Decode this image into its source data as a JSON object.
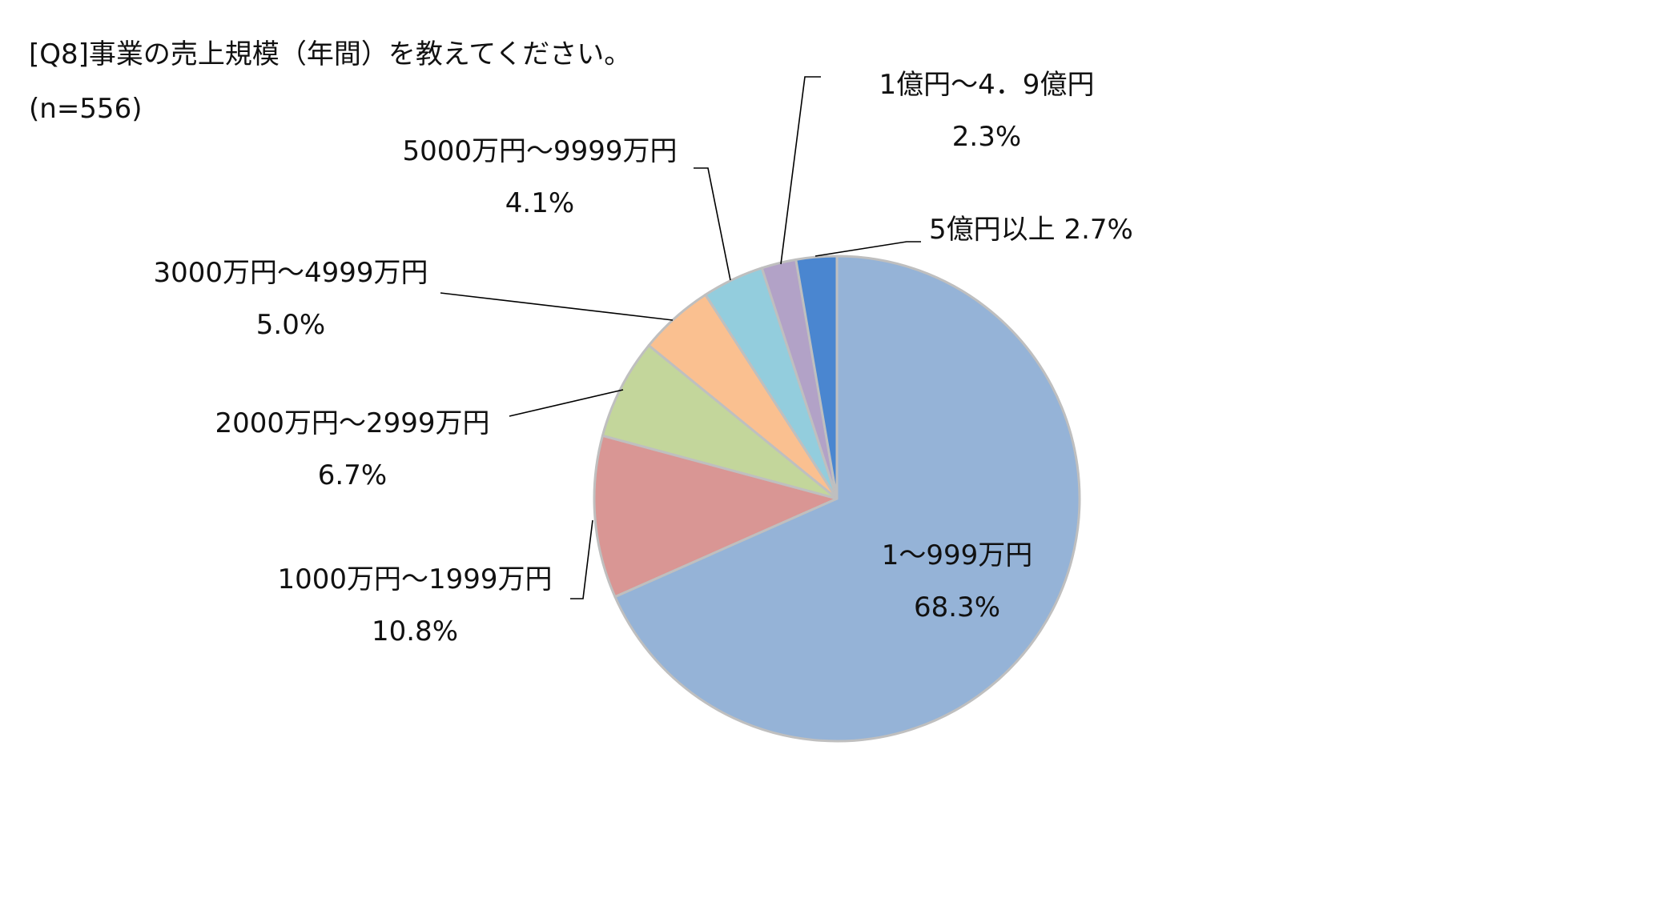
{
  "chart_data": {
    "type": "pie",
    "title": "[Q8]事業の売上規模（年間）を教えてください。",
    "subtitle": "(n=556)",
    "slices": [
      {
        "label": "1～999万円",
        "value": 68.3,
        "display": "68.3%",
        "color": "#95b3d7"
      },
      {
        "label": "1000万円～1999万円",
        "value": 10.8,
        "display": "10.8%",
        "color": "#d99694"
      },
      {
        "label": "2000万円～2999万円",
        "value": 6.7,
        "display": "6.7%",
        "color": "#c3d69b"
      },
      {
        "label": "3000万円～4999万円",
        "value": 5.0,
        "display": "5.0%",
        "color": "#fac090"
      },
      {
        "label": "5000万円～9999万円",
        "value": 4.1,
        "display": "4.1%",
        "color": "#93cddd"
      },
      {
        "label": "1億円～4．9億円",
        "value": 2.3,
        "display": "2.3%",
        "color": "#b2a2c7"
      },
      {
        "label": "5億円以上",
        "value": 2.7,
        "display": "2.7%",
        "color": "#4a86d0"
      }
    ]
  }
}
